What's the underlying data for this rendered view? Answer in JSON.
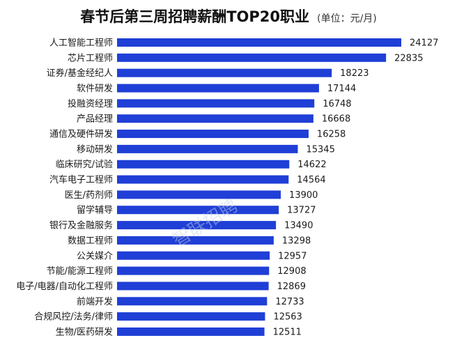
{
  "chart_data": {
    "type": "bar",
    "orientation": "horizontal",
    "title": "春节后第三周招聘薪酬TOP20职业",
    "unit": "(单位：元/月)",
    "categories": [
      "人工智能工程师",
      "芯片工程师",
      "证券/基金经纪人",
      "软件研发",
      "投融资经理",
      "产品经理",
      "通信及硬件研发",
      "移动研发",
      "临床研究/试验",
      "汽车电子工程师",
      "医生/药剂师",
      "留学辅导",
      "银行及金融服务",
      "数据工程师",
      "公关媒介",
      "节能/能源工程师",
      "电子/电器/自动化工程师",
      "前端开发",
      "合规风控/法务/律师",
      "生物/医药研发"
    ],
    "values": [
      24127,
      22835,
      18223,
      17144,
      16748,
      16668,
      16258,
      15345,
      14622,
      14564,
      13900,
      13727,
      13490,
      13298,
      12957,
      12908,
      12869,
      12733,
      12563,
      12511
    ],
    "bar_color": "#1f3fd6",
    "watermark": "智联招聘",
    "grid": false,
    "legend": "none"
  }
}
